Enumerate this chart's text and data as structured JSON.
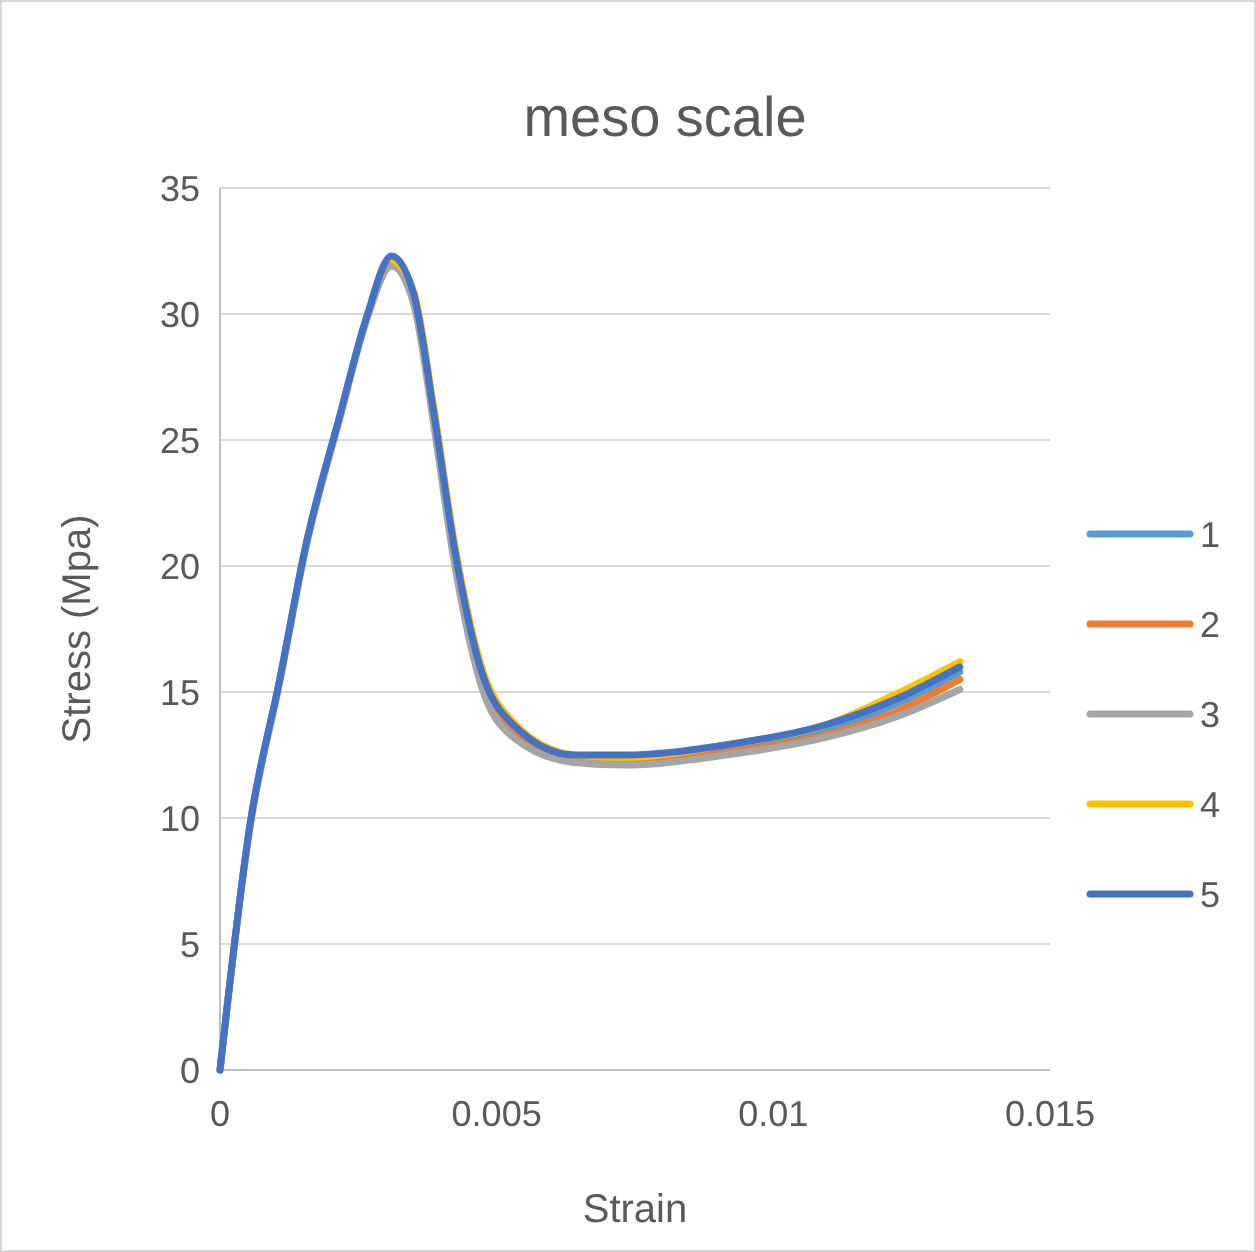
{
  "chart_data": {
    "type": "line",
    "title": "meso scale",
    "xlabel": "Strain",
    "ylabel": "Stress (Mpa)",
    "xlim": [
      0,
      0.015
    ],
    "xticks": [
      0,
      0.005,
      0.01,
      0.015
    ],
    "ylim": [
      0,
      35
    ],
    "yticks": [
      0,
      5,
      10,
      15,
      20,
      25,
      30,
      35
    ],
    "grid": "y",
    "legend": "right",
    "marker": "none",
    "line_style": "solid",
    "x": [
      0,
      0.00054,
      0.00108,
      0.00155,
      0.00217,
      0.00264,
      0.0031,
      0.0035,
      0.00387,
      0.00423,
      0.0047,
      0.0053,
      0.0064,
      0.0073,
      0.00914,
      0.01095,
      0.0122,
      0.01337
    ],
    "series": [
      {
        "name": "1",
        "color": "#5b9bd5",
        "values": [
          0,
          9.7,
          15.5,
          20.8,
          26,
          29.8,
          32.2,
          30.7,
          25.8,
          20.6,
          15.8,
          13.5,
          12.4,
          12.3,
          12.8,
          13.5,
          14.5,
          15.8
        ]
      },
      {
        "name": "2",
        "color": "#ed7d31",
        "values": [
          null,
          null,
          null,
          null,
          null,
          null,
          32.1,
          30.7,
          25.8,
          20.6,
          15.8,
          13.4,
          12.3,
          12.2,
          12.6,
          13.3,
          14.2,
          15.5
        ]
      },
      {
        "name": "3",
        "color": "#a5a5a5",
        "values": [
          0,
          9.6,
          15.4,
          20.7,
          25.9,
          29.7,
          31.9,
          30.4,
          25.5,
          20.2,
          15.4,
          13.2,
          12.2,
          12.1,
          12.5,
          13.2,
          14,
          15.1
        ]
      },
      {
        "name": "4",
        "color": "#ffc000",
        "values": [
          null,
          null,
          null,
          null,
          null,
          null,
          32.2,
          30.9,
          26.2,
          21,
          16.2,
          13.8,
          12.5,
          12.4,
          12.9,
          13.7,
          14.9,
          16.2
        ]
      },
      {
        "name": "5",
        "color": "#4472c4",
        "values": [
          0,
          9.7,
          15.5,
          20.8,
          26,
          29.8,
          32.3,
          30.8,
          26,
          20.8,
          16,
          13.7,
          12.5,
          12.5,
          12.9,
          13.7,
          14.7,
          16
        ]
      }
    ]
  }
}
